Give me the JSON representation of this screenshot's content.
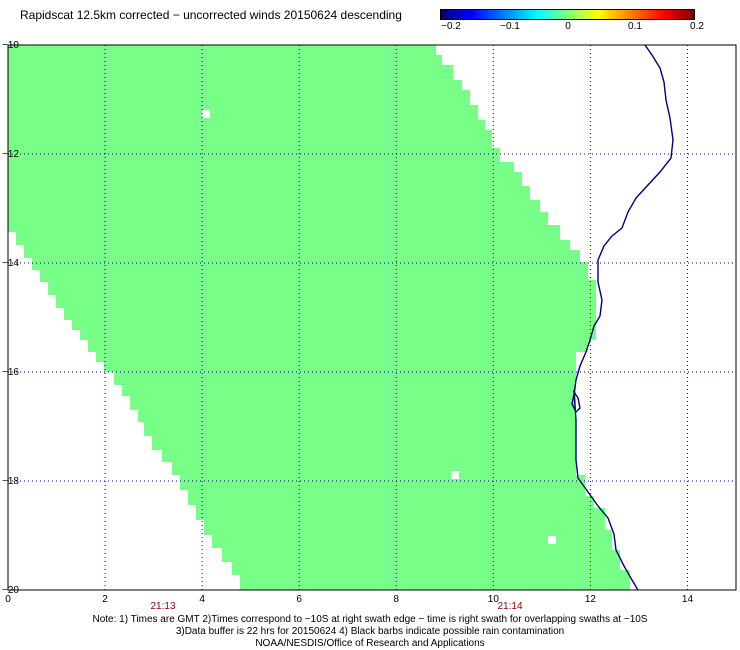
{
  "title": "Rapidscat 12.5km corrected − uncorrected winds 20150624 descending",
  "colorbar": {
    "labels": [
      "−0.2",
      "−0.1",
      "0",
      "0.1",
      "0.2"
    ],
    "colors": [
      "#00007f",
      "#0000ff",
      "#00ffff",
      "#80ff80",
      "#ffff00",
      "#ff0000",
      "#7f0000"
    ]
  },
  "map": {
    "x_ticks": [
      "0",
      "2",
      "4",
      "6",
      "8",
      "10",
      "12",
      "14"
    ],
    "y_ticks": [
      "−10",
      "−12",
      "−14",
      "−16",
      "−18",
      "−20"
    ],
    "lon_range": [
      0,
      15
    ],
    "lat_range": [
      -20,
      -10
    ],
    "swath_color": "#77ff88",
    "coast_color": "#000080",
    "grid_color": "#00008b"
  },
  "swath_times": [
    "21:13",
    "21:14"
  ],
  "notes": [
    "Note: 1) Times are GMT 2)Times correspond to −10S at right swath edge − time is right swath for overlapping swaths at −10S",
    "3)Data buffer is 22 hrs for 20150624 4) Black barbs indicate possible rain contamination",
    "NOAA/NESDIS/Office of Research and Applications"
  ]
}
